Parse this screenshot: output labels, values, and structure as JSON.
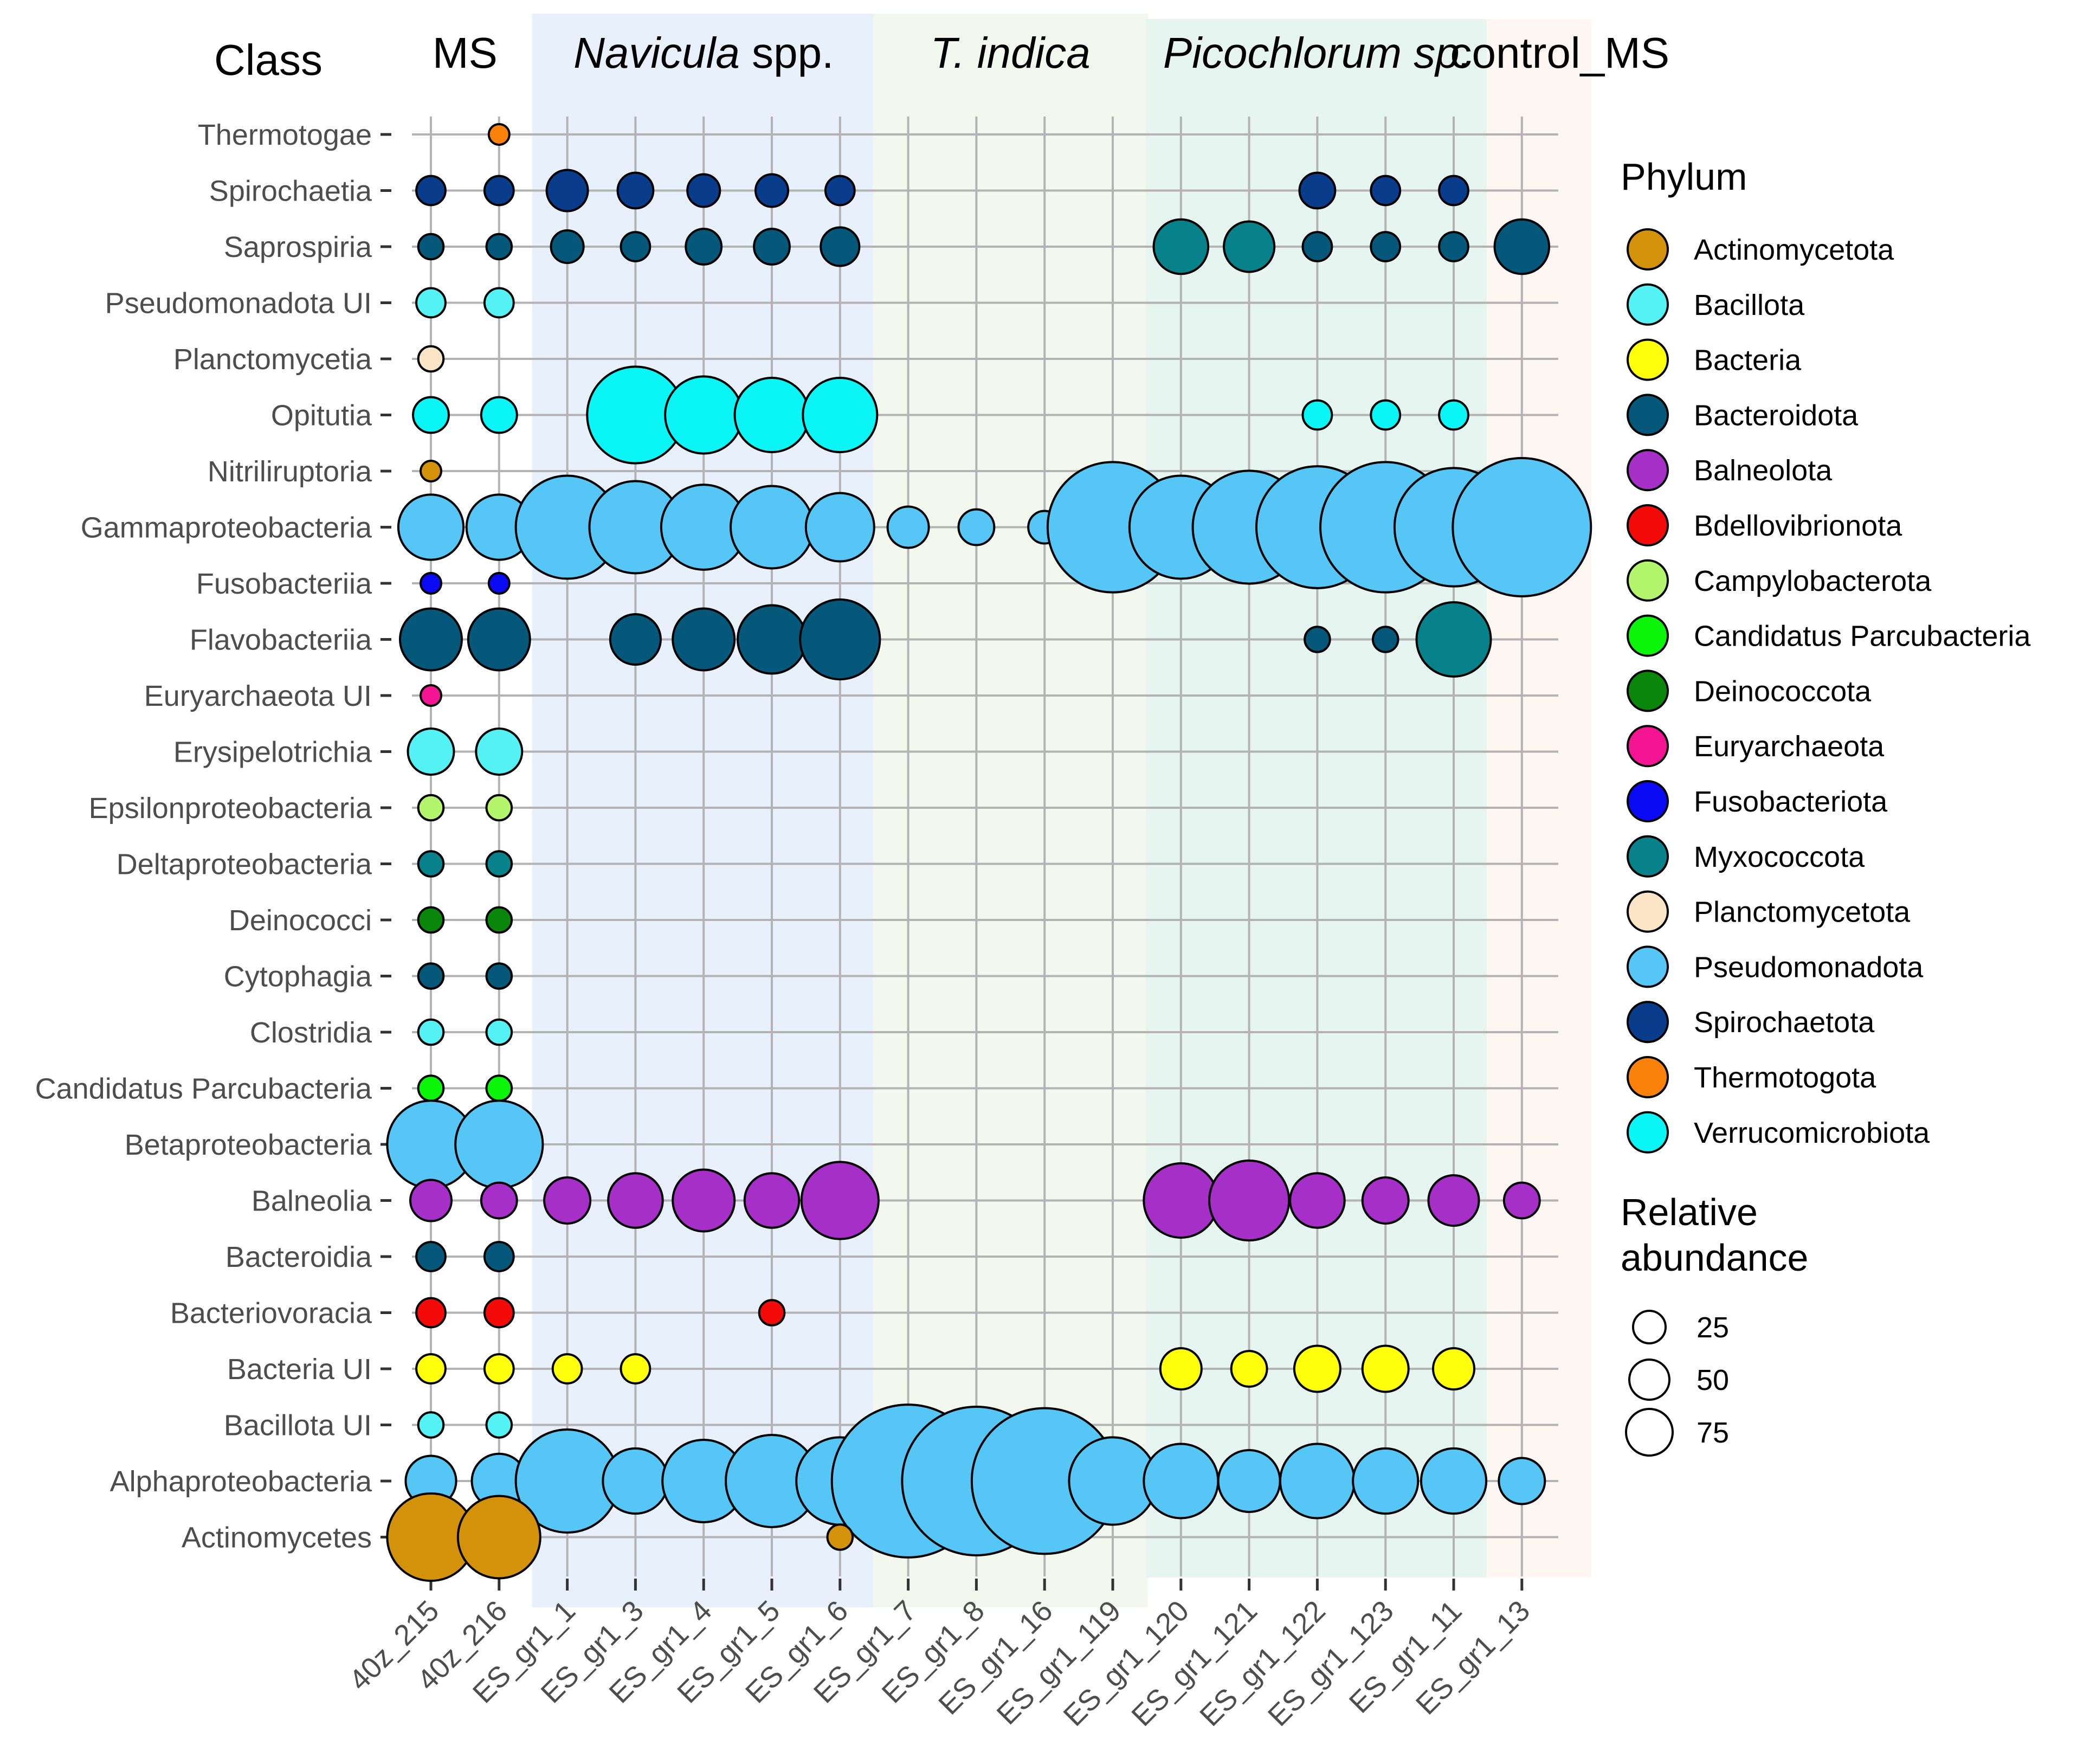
{
  "chart_data": {
    "type": "bubble",
    "y_axis_title": "Class",
    "categories_x": [
      "40z_215",
      "40z_216",
      "ES_gr1_1",
      "ES_gr1_3",
      "ES_gr1_4",
      "ES_gr1_5",
      "ES_gr1_6",
      "ES_gr1_7",
      "ES_gr1_8",
      "ES_gr1_16",
      "ES_gr1_119",
      "ES_gr1_120",
      "ES_gr1_121",
      "ES_gr1_122",
      "ES_gr1_123",
      "ES_gr1_11",
      "ES_gr1_13"
    ],
    "categories_y": [
      "Thermotogae",
      "Spirochaetia",
      "Saprospiria",
      "Pseudomonadota UI",
      "Planctomycetia",
      "Opitutia",
      "Nitriliruptoria",
      "Gammaproteobacteria",
      "Fusobacteriia",
      "Flavobacteriia",
      "Euryarchaeota UI",
      "Erysipelotrichia",
      "Epsilonproteobacteria",
      "Deltaproteobacteria",
      "Deinococci",
      "Cytophagia",
      "Clostridia",
      "Candidatus Parcubacteria",
      "Betaproteobacteria",
      "Balneolia",
      "Bacteroidia",
      "Bacteriovoracia",
      "Bacteria UI",
      "Bacillota UI",
      "Alphaproteobacteria",
      "Actinomycetes"
    ],
    "groups": [
      {
        "label": "MS",
        "italic": "",
        "rest": "MS",
        "start": 0,
        "end": 1,
        "color": ""
      },
      {
        "label": "Navicula spp.",
        "italic": "Navicula",
        "rest": " spp.",
        "start": 2,
        "end": 6,
        "color": "#e8f0fc"
      },
      {
        "label": "T. indica",
        "italic": "T. indica",
        "rest": "",
        "start": 7,
        "end": 10,
        "color": "#f3f8ee"
      },
      {
        "label": "Picochlorum sp.",
        "italic": "Picochlorum sp.",
        "rest": "",
        "start": 11,
        "end": 15,
        "color": "#e6f5ef"
      },
      {
        "label": "control_MS",
        "italic": "",
        "rest": "control_MS",
        "start": 16,
        "end": 16,
        "color": "#fdf6f2"
      }
    ],
    "phyla": [
      {
        "name": "Actinomycetota",
        "color": "#D4920B"
      },
      {
        "name": "Bacillota",
        "color": "#55F2F5"
      },
      {
        "name": "Bacteria",
        "color": "#FFFF0A"
      },
      {
        "name": "Bacteroidota",
        "color": "#05587A"
      },
      {
        "name": "Balneolota",
        "color": "#A62FC8"
      },
      {
        "name": "Bdellovibrionota",
        "color": "#F50A0A"
      },
      {
        "name": "Campylobacterota",
        "color": "#B4F56E"
      },
      {
        "name": "Candidatus Parcubacteria",
        "color": "#0AF50A"
      },
      {
        "name": "Deinococcota",
        "color": "#0A870A"
      },
      {
        "name": "Euryarchaeota",
        "color": "#F51493"
      },
      {
        "name": "Fusobacteriota",
        "color": "#0A0AF5"
      },
      {
        "name": "Myxococcota",
        "color": "#08828A"
      },
      {
        "name": "Planctomycetota",
        "color": "#FCE5C7"
      },
      {
        "name": "Pseudomonadota",
        "color": "#55C6F5"
      },
      {
        "name": "Spirochaetota",
        "color": "#0A3C8C"
      },
      {
        "name": "Thermotogota",
        "color": "#FA820A"
      },
      {
        "name": "Verrucomicrobiota",
        "color": "#0AF5F5"
      }
    ],
    "size_legend_title": "Relative abundance",
    "size_legend": [
      25,
      50,
      75
    ],
    "points": [
      {
        "cls": "Thermotogae",
        "phylum": "Thermotogota",
        "x": "40z_216",
        "v": 1
      },
      {
        "cls": "Spirochaetia",
        "phylum": "Spirochaetota",
        "x": "40z_215",
        "v": 2
      },
      {
        "cls": "Spirochaetia",
        "phylum": "Spirochaetota",
        "x": "40z_216",
        "v": 2
      },
      {
        "cls": "Spirochaetia",
        "phylum": "Spirochaetota",
        "x": "ES_gr1_1",
        "v": 4
      },
      {
        "cls": "Spirochaetia",
        "phylum": "Spirochaetota",
        "x": "ES_gr1_3",
        "v": 3
      },
      {
        "cls": "Spirochaetia",
        "phylum": "Spirochaetota",
        "x": "ES_gr1_4",
        "v": 2.5
      },
      {
        "cls": "Spirochaetia",
        "phylum": "Spirochaetota",
        "x": "ES_gr1_5",
        "v": 2.5
      },
      {
        "cls": "Spirochaetia",
        "phylum": "Spirochaetota",
        "x": "ES_gr1_6",
        "v": 2
      },
      {
        "cls": "Spirochaetia",
        "phylum": "Spirochaetota",
        "x": "ES_gr1_122",
        "v": 3
      },
      {
        "cls": "Spirochaetia",
        "phylum": "Spirochaetota",
        "x": "ES_gr1_123",
        "v": 2
      },
      {
        "cls": "Spirochaetia",
        "phylum": "Spirochaetota",
        "x": "ES_gr1_11",
        "v": 2
      },
      {
        "cls": "Saprospiria",
        "phylum": "Bacteroidota",
        "x": "40z_215",
        "v": 1.5
      },
      {
        "cls": "Saprospiria",
        "phylum": "Bacteroidota",
        "x": "40z_216",
        "v": 1.5
      },
      {
        "cls": "Saprospiria",
        "phylum": "Bacteroidota",
        "x": "ES_gr1_1",
        "v": 2.5
      },
      {
        "cls": "Saprospiria",
        "phylum": "Bacteroidota",
        "x": "ES_gr1_3",
        "v": 2
      },
      {
        "cls": "Saprospiria",
        "phylum": "Bacteroidota",
        "x": "ES_gr1_4",
        "v": 3
      },
      {
        "cls": "Saprospiria",
        "phylum": "Bacteroidota",
        "x": "ES_gr1_5",
        "v": 3
      },
      {
        "cls": "Saprospiria",
        "phylum": "Bacteroidota",
        "x": "ES_gr1_6",
        "v": 3.5
      },
      {
        "cls": "Saprospiria",
        "phylum": "Myxococcota",
        "x": "ES_gr1_120",
        "v": 7
      },
      {
        "cls": "Saprospiria",
        "phylum": "Myxococcota",
        "x": "ES_gr1_121",
        "v": 6
      },
      {
        "cls": "Saprospiria",
        "phylum": "Bacteroidota",
        "x": "ES_gr1_122",
        "v": 2
      },
      {
        "cls": "Saprospiria",
        "phylum": "Bacteroidota",
        "x": "ES_gr1_123",
        "v": 2
      },
      {
        "cls": "Saprospiria",
        "phylum": "Bacteroidota",
        "x": "ES_gr1_11",
        "v": 2
      },
      {
        "cls": "Saprospiria",
        "phylum": "Bacteroidota",
        "x": "ES_gr1_13",
        "v": 7
      },
      {
        "cls": "Pseudomonadota UI",
        "phylum": "Bacillota",
        "x": "40z_215",
        "v": 2
      },
      {
        "cls": "Pseudomonadota UI",
        "phylum": "Bacillota",
        "x": "40z_216",
        "v": 2
      },
      {
        "cls": "Planctomycetia",
        "phylum": "Planctomycetota",
        "x": "40z_215",
        "v": 1.5
      },
      {
        "cls": "Opitutia",
        "phylum": "Verrucomicrobiota",
        "x": "40z_215",
        "v": 3
      },
      {
        "cls": "Opitutia",
        "phylum": "Verrucomicrobiota",
        "x": "40z_216",
        "v": 3
      },
      {
        "cls": "Opitutia",
        "phylum": "Verrucomicrobiota",
        "x": "ES_gr1_3",
        "v": 22
      },
      {
        "cls": "Opitutia",
        "phylum": "Verrucomicrobiota",
        "x": "ES_gr1_4",
        "v": 14
      },
      {
        "cls": "Opitutia",
        "phylum": "Verrucomicrobiota",
        "x": "ES_gr1_5",
        "v": 13
      },
      {
        "cls": "Opitutia",
        "phylum": "Verrucomicrobiota",
        "x": "ES_gr1_6",
        "v": 13
      },
      {
        "cls": "Opitutia",
        "phylum": "Verrucomicrobiota",
        "x": "ES_gr1_122",
        "v": 2
      },
      {
        "cls": "Opitutia",
        "phylum": "Verrucomicrobiota",
        "x": "ES_gr1_123",
        "v": 2
      },
      {
        "cls": "Opitutia",
        "phylum": "Verrucomicrobiota",
        "x": "ES_gr1_11",
        "v": 2
      },
      {
        "cls": "Nitriliruptoria",
        "phylum": "Actinomycetota",
        "x": "40z_215",
        "v": 1
      },
      {
        "cls": "Gammaproteobacteria",
        "phylum": "Pseudomonadota",
        "x": "40z_215",
        "v": 10
      },
      {
        "cls": "Gammaproteobacteria",
        "phylum": "Pseudomonadota",
        "x": "40z_216",
        "v": 10
      },
      {
        "cls": "Gammaproteobacteria",
        "phylum": "Pseudomonadota",
        "x": "ES_gr1_1",
        "v": 25
      },
      {
        "cls": "Gammaproteobacteria",
        "phylum": "Pseudomonadota",
        "x": "ES_gr1_3",
        "v": 20
      },
      {
        "cls": "Gammaproteobacteria",
        "phylum": "Pseudomonadota",
        "x": "ES_gr1_4",
        "v": 17
      },
      {
        "cls": "Gammaproteobacteria",
        "phylum": "Pseudomonadota",
        "x": "ES_gr1_5",
        "v": 16
      },
      {
        "cls": "Gammaproteobacteria",
        "phylum": "Pseudomonadota",
        "x": "ES_gr1_6",
        "v": 11
      },
      {
        "cls": "Gammaproteobacteria",
        "phylum": "Pseudomonadota",
        "x": "ES_gr1_7",
        "v": 4
      },
      {
        "cls": "Gammaproteobacteria",
        "phylum": "Pseudomonadota",
        "x": "ES_gr1_8",
        "v": 3
      },
      {
        "cls": "Gammaproteobacteria",
        "phylum": "Pseudomonadota",
        "x": "ES_gr1_16",
        "v": 2.5
      },
      {
        "cls": "Gammaproteobacteria",
        "phylum": "Pseudomonadota",
        "x": "ES_gr1_119",
        "v": 40
      },
      {
        "cls": "Gammaproteobacteria",
        "phylum": "Pseudomonadota",
        "x": "ES_gr1_120",
        "v": 25
      },
      {
        "cls": "Gammaproteobacteria",
        "phylum": "Pseudomonadota",
        "x": "ES_gr1_121",
        "v": 30
      },
      {
        "cls": "Gammaproteobacteria",
        "phylum": "Pseudomonadota",
        "x": "ES_gr1_122",
        "v": 35
      },
      {
        "cls": "Gammaproteobacteria",
        "phylum": "Pseudomonadota",
        "x": "ES_gr1_123",
        "v": 40
      },
      {
        "cls": "Gammaproteobacteria",
        "phylum": "Pseudomonadota",
        "x": "ES_gr1_11",
        "v": 33
      },
      {
        "cls": "Gammaproteobacteria",
        "phylum": "Pseudomonadota",
        "x": "ES_gr1_13",
        "v": 45
      },
      {
        "cls": "Fusobacteriia",
        "phylum": "Fusobacteriota",
        "x": "40z_215",
        "v": 1
      },
      {
        "cls": "Fusobacteriia",
        "phylum": "Fusobacteriota",
        "x": "40z_216",
        "v": 1
      },
      {
        "cls": "Flavobacteriia",
        "phylum": "Bacteroidota",
        "x": "40z_215",
        "v": 9
      },
      {
        "cls": "Flavobacteriia",
        "phylum": "Bacteroidota",
        "x": "40z_216",
        "v": 9
      },
      {
        "cls": "Flavobacteriia",
        "phylum": "Bacteroidota",
        "x": "ES_gr1_3",
        "v": 6
      },
      {
        "cls": "Flavobacteriia",
        "phylum": "Bacteroidota",
        "x": "ES_gr1_4",
        "v": 9
      },
      {
        "cls": "Flavobacteriia",
        "phylum": "Bacteroidota",
        "x": "ES_gr1_5",
        "v": 11
      },
      {
        "cls": "Flavobacteriia",
        "phylum": "Bacteroidota",
        "x": "ES_gr1_6",
        "v": 15
      },
      {
        "cls": "Flavobacteriia",
        "phylum": "Bacteroidota",
        "x": "ES_gr1_122",
        "v": 1.5
      },
      {
        "cls": "Flavobacteriia",
        "phylum": "Bacteroidota",
        "x": "ES_gr1_123",
        "v": 1.5
      },
      {
        "cls": "Flavobacteriia",
        "phylum": "Myxococcota",
        "x": "ES_gr1_11",
        "v": 13
      },
      {
        "cls": "Euryarchaeota UI",
        "phylum": "Euryarchaeota",
        "x": "40z_215",
        "v": 1
      },
      {
        "cls": "Erysipelotrichia",
        "phylum": "Bacillota",
        "x": "40z_215",
        "v": 5
      },
      {
        "cls": "Erysipelotrichia",
        "phylum": "Bacillota",
        "x": "40z_216",
        "v": 5
      },
      {
        "cls": "Epsilonproteobacteria",
        "phylum": "Campylobacterota",
        "x": "40z_215",
        "v": 1.5
      },
      {
        "cls": "Epsilonproteobacteria",
        "phylum": "Campylobacterota",
        "x": "40z_216",
        "v": 1.5
      },
      {
        "cls": "Deltaproteobacteria",
        "phylum": "Myxococcota",
        "x": "40z_215",
        "v": 1.5
      },
      {
        "cls": "Deltaproteobacteria",
        "phylum": "Myxococcota",
        "x": "40z_216",
        "v": 1.5
      },
      {
        "cls": "Deinococci",
        "phylum": "Deinococcota",
        "x": "40z_215",
        "v": 1.5
      },
      {
        "cls": "Deinococci",
        "phylum": "Deinococcota",
        "x": "40z_216",
        "v": 1.5
      },
      {
        "cls": "Cytophagia",
        "phylum": "Bacteroidota",
        "x": "40z_215",
        "v": 1.5
      },
      {
        "cls": "Cytophagia",
        "phylum": "Bacteroidota",
        "x": "40z_216",
        "v": 1.5
      },
      {
        "cls": "Clostridia",
        "phylum": "Bacillota",
        "x": "40z_215",
        "v": 1.5
      },
      {
        "cls": "Clostridia",
        "phylum": "Bacillota",
        "x": "40z_216",
        "v": 1.5
      },
      {
        "cls": "Candidatus Parcubacteria",
        "phylum": "Candidatus Parcubacteria",
        "x": "40z_215",
        "v": 1.5
      },
      {
        "cls": "Candidatus Parcubacteria",
        "phylum": "Candidatus Parcubacteria",
        "x": "40z_216",
        "v": 1.5
      },
      {
        "cls": "Betaproteobacteria",
        "phylum": "Pseudomonadota",
        "x": "40z_215",
        "v": 18
      },
      {
        "cls": "Betaproteobacteria",
        "phylum": "Pseudomonadota",
        "x": "40z_216",
        "v": 18
      },
      {
        "cls": "Balneolia",
        "phylum": "Balneolota",
        "x": "40z_215",
        "v": 4
      },
      {
        "cls": "Balneolia",
        "phylum": "Balneolota",
        "x": "40z_216",
        "v": 3
      },
      {
        "cls": "Balneolia",
        "phylum": "Balneolota",
        "x": "ES_gr1_1",
        "v": 5
      },
      {
        "cls": "Balneolia",
        "phylum": "Balneolota",
        "x": "ES_gr1_3",
        "v": 7
      },
      {
        "cls": "Balneolia",
        "phylum": "Balneolota",
        "x": "ES_gr1_4",
        "v": 9
      },
      {
        "cls": "Balneolia",
        "phylum": "Balneolota",
        "x": "ES_gr1_5",
        "v": 7
      },
      {
        "cls": "Balneolia",
        "phylum": "Balneolota",
        "x": "ES_gr1_6",
        "v": 14
      },
      {
        "cls": "Balneolia",
        "phylum": "Balneolota",
        "x": "ES_gr1_120",
        "v": 13
      },
      {
        "cls": "Balneolia",
        "phylum": "Balneolota",
        "x": "ES_gr1_121",
        "v": 15
      },
      {
        "cls": "Balneolia",
        "phylum": "Balneolota",
        "x": "ES_gr1_122",
        "v": 7
      },
      {
        "cls": "Balneolia",
        "phylum": "Balneolota",
        "x": "ES_gr1_123",
        "v": 5
      },
      {
        "cls": "Balneolia",
        "phylum": "Balneolota",
        "x": "ES_gr1_11",
        "v": 6
      },
      {
        "cls": "Balneolia",
        "phylum": "Balneolota",
        "x": "ES_gr1_13",
        "v": 3
      },
      {
        "cls": "Bacteroidia",
        "phylum": "Bacteroidota",
        "x": "40z_215",
        "v": 2
      },
      {
        "cls": "Bacteroidia",
        "phylum": "Bacteroidota",
        "x": "40z_216",
        "v": 2
      },
      {
        "cls": "Bacteriovoracia",
        "phylum": "Bdellovibrionota",
        "x": "40z_215",
        "v": 2
      },
      {
        "cls": "Bacteriovoracia",
        "phylum": "Bdellovibrionota",
        "x": "40z_216",
        "v": 2
      },
      {
        "cls": "Bacteriovoracia",
        "phylum": "Bdellovibrionota",
        "x": "ES_gr1_5",
        "v": 1.5
      },
      {
        "cls": "Bacteria UI",
        "phylum": "Bacteria",
        "x": "40z_215",
        "v": 2
      },
      {
        "cls": "Bacteria UI",
        "phylum": "Bacteria",
        "x": "40z_216",
        "v": 2
      },
      {
        "cls": "Bacteria UI",
        "phylum": "Bacteria",
        "x": "ES_gr1_1",
        "v": 2
      },
      {
        "cls": "Bacteria UI",
        "phylum": "Bacteria",
        "x": "ES_gr1_3",
        "v": 2
      },
      {
        "cls": "Bacteria UI",
        "phylum": "Bacteria",
        "x": "ES_gr1_120",
        "v": 4
      },
      {
        "cls": "Bacteria UI",
        "phylum": "Bacteria",
        "x": "ES_gr1_121",
        "v": 3
      },
      {
        "cls": "Bacteria UI",
        "phylum": "Bacteria",
        "x": "ES_gr1_122",
        "v": 5
      },
      {
        "cls": "Bacteria UI",
        "phylum": "Bacteria",
        "x": "ES_gr1_123",
        "v": 5
      },
      {
        "cls": "Bacteria UI",
        "phylum": "Bacteria",
        "x": "ES_gr1_11",
        "v": 4
      },
      {
        "cls": "Bacillota UI",
        "phylum": "Bacillota",
        "x": "40z_215",
        "v": 1.5
      },
      {
        "cls": "Bacillota UI",
        "phylum": "Bacillota",
        "x": "40z_216",
        "v": 1.5
      },
      {
        "cls": "Alphaproteobacteria",
        "phylum": "Pseudomonadota",
        "x": "40z_215",
        "v": 6
      },
      {
        "cls": "Alphaproteobacteria",
        "phylum": "Pseudomonadota",
        "x": "40z_216",
        "v": 7
      },
      {
        "cls": "Alphaproteobacteria",
        "phylum": "Pseudomonadota",
        "x": "ES_gr1_1",
        "v": 25
      },
      {
        "cls": "Alphaproteobacteria",
        "phylum": "Pseudomonadota",
        "x": "ES_gr1_3",
        "v": 10
      },
      {
        "cls": "Alphaproteobacteria",
        "phylum": "Pseudomonadota",
        "x": "ES_gr1_4",
        "v": 16
      },
      {
        "cls": "Alphaproteobacteria",
        "phylum": "Pseudomonadota",
        "x": "ES_gr1_5",
        "v": 20
      },
      {
        "cls": "Alphaproteobacteria",
        "phylum": "Pseudomonadota",
        "x": "ES_gr1_6",
        "v": 18
      },
      {
        "cls": "Alphaproteobacteria",
        "phylum": "Pseudomonadota",
        "x": "ES_gr1_7",
        "v": 55
      },
      {
        "cls": "Alphaproteobacteria",
        "phylum": "Pseudomonadota",
        "x": "ES_gr1_8",
        "v": 52
      },
      {
        "cls": "Alphaproteobacteria",
        "phylum": "Pseudomonadota",
        "x": "ES_gr1_16",
        "v": 50
      },
      {
        "cls": "Alphaproteobacteria",
        "phylum": "Pseudomonadota",
        "x": "ES_gr1_119",
        "v": 18
      },
      {
        "cls": "Alphaproteobacteria",
        "phylum": "Pseudomonadota",
        "x": "ES_gr1_120",
        "v": 13
      },
      {
        "cls": "Alphaproteobacteria",
        "phylum": "Pseudomonadota",
        "x": "ES_gr1_121",
        "v": 9
      },
      {
        "cls": "Alphaproteobacteria",
        "phylum": "Pseudomonadota",
        "x": "ES_gr1_122",
        "v": 13
      },
      {
        "cls": "Alphaproteobacteria",
        "phylum": "Pseudomonadota",
        "x": "ES_gr1_123",
        "v": 10
      },
      {
        "cls": "Alphaproteobacteria",
        "phylum": "Pseudomonadota",
        "x": "ES_gr1_11",
        "v": 10
      },
      {
        "cls": "Alphaproteobacteria",
        "phylum": "Pseudomonadota",
        "x": "ES_gr1_13",
        "v": 5
      },
      {
        "cls": "Actinomycetes",
        "phylum": "Actinomycetota",
        "x": "40z_215",
        "v": 18
      },
      {
        "cls": "Actinomycetes",
        "phylum": "Actinomycetota",
        "x": "40z_216",
        "v": 16
      },
      {
        "cls": "Actinomycetes",
        "phylum": "Actinomycetota",
        "x": "ES_gr1_6",
        "v": 1.5
      }
    ]
  }
}
